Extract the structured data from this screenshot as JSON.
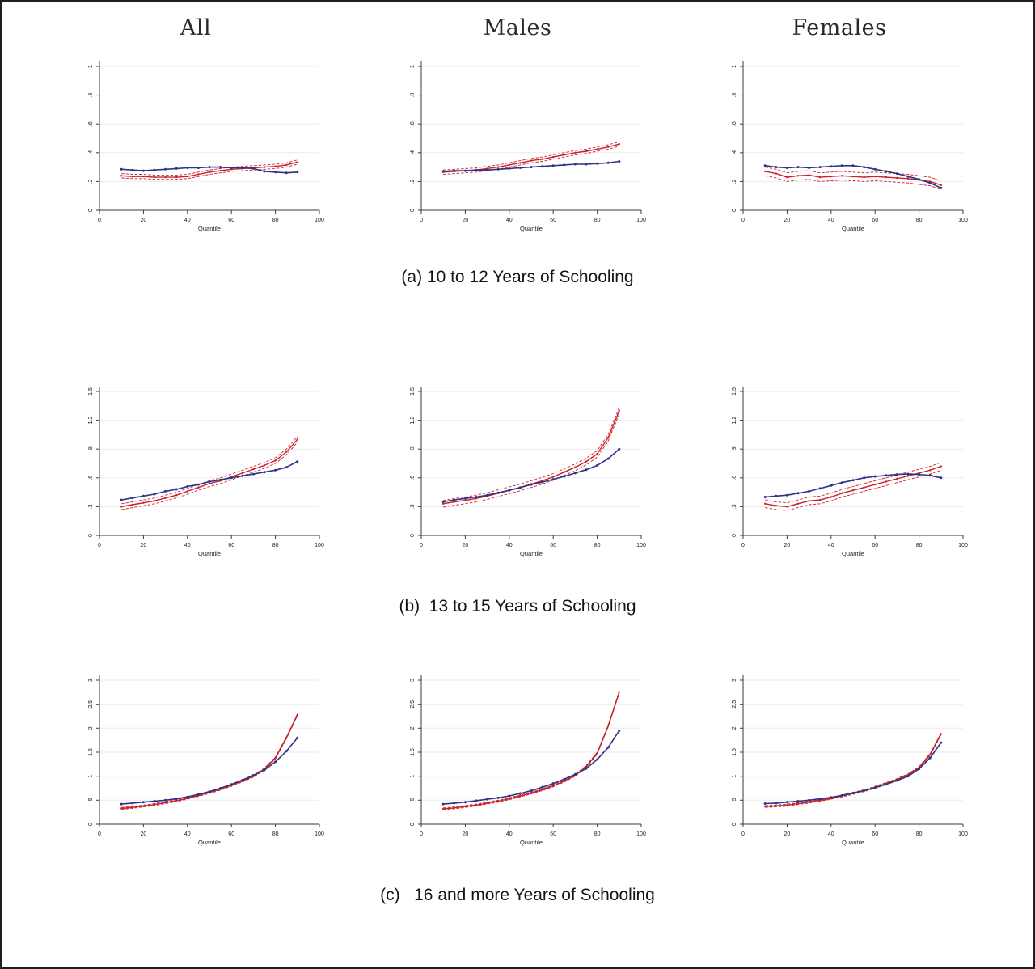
{
  "column_headers": [
    "All",
    "Males",
    "Females"
  ],
  "captions": [
    "(a) 10 to 12 Years of Schooling",
    "(b)  13 to 15 Years of Schooling",
    "(c)   16 and more Years of Schooling"
  ],
  "colors": {
    "blue_series": "#2b3489",
    "red_series": "#c8202a",
    "grid": "#ebebeb",
    "axis": "#3a3a3a"
  },
  "chart_data": [
    {
      "id": "a-all",
      "type": "line",
      "column": "All",
      "panel": "(a) 10 to 12 Years of Schooling",
      "xlabel": "Quantile",
      "xlim": [
        0,
        100
      ],
      "ylim": [
        0,
        1
      ],
      "xticks": [
        0,
        20,
        40,
        60,
        80,
        100
      ],
      "yticks": [
        {
          "v": 0,
          "label": "0"
        },
        {
          "v": 0.2,
          "label": ".2"
        },
        {
          "v": 0.4,
          "label": ".4"
        },
        {
          "v": 0.6,
          "label": ".6"
        },
        {
          "v": 0.8,
          "label": ".8"
        },
        {
          "v": 1,
          "label": "1"
        }
      ],
      "x": [
        10,
        15,
        20,
        25,
        30,
        35,
        40,
        45,
        50,
        55,
        60,
        65,
        70,
        75,
        80,
        85,
        90
      ],
      "series": {
        "blue": [
          0.285,
          0.28,
          0.275,
          0.28,
          0.285,
          0.29,
          0.295,
          0.295,
          0.3,
          0.3,
          0.295,
          0.295,
          0.29,
          0.27,
          0.265,
          0.26,
          0.265
        ],
        "red": [
          0.24,
          0.235,
          0.235,
          0.23,
          0.23,
          0.23,
          0.235,
          0.25,
          0.265,
          0.275,
          0.285,
          0.29,
          0.295,
          0.3,
          0.305,
          0.315,
          0.335
        ]
      },
      "ci": 0.015
    },
    {
      "id": "a-males",
      "type": "line",
      "column": "Males",
      "panel": "(a) 10 to 12 Years of Schooling",
      "xlabel": "Quantile",
      "xlim": [
        0,
        100
      ],
      "ylim": [
        0,
        1
      ],
      "xticks": [
        0,
        20,
        40,
        60,
        80,
        100
      ],
      "yticks": [
        {
          "v": 0,
          "label": "0"
        },
        {
          "v": 0.2,
          "label": ".2"
        },
        {
          "v": 0.4,
          "label": ".4"
        },
        {
          "v": 0.6,
          "label": ".6"
        },
        {
          "v": 0.8,
          "label": ".8"
        },
        {
          "v": 1,
          "label": "1"
        }
      ],
      "x": [
        10,
        15,
        20,
        25,
        30,
        35,
        40,
        45,
        50,
        55,
        60,
        65,
        70,
        75,
        80,
        85,
        90
      ],
      "series": {
        "blue": [
          0.27,
          0.275,
          0.275,
          0.28,
          0.28,
          0.285,
          0.29,
          0.295,
          0.3,
          0.305,
          0.31,
          0.315,
          0.32,
          0.32,
          0.325,
          0.33,
          0.34
        ],
        "red": [
          0.265,
          0.27,
          0.275,
          0.28,
          0.29,
          0.3,
          0.315,
          0.33,
          0.345,
          0.355,
          0.37,
          0.385,
          0.4,
          0.41,
          0.425,
          0.44,
          0.46
        ]
      },
      "ci": 0.015
    },
    {
      "id": "a-females",
      "type": "line",
      "column": "Females",
      "panel": "(a) 10 to 12 Years of Schooling",
      "xlabel": "Quantile",
      "xlim": [
        0,
        100
      ],
      "ylim": [
        0,
        1
      ],
      "xticks": [
        0,
        20,
        40,
        60,
        80,
        100
      ],
      "yticks": [
        {
          "v": 0,
          "label": "0"
        },
        {
          "v": 0.2,
          "label": ".2"
        },
        {
          "v": 0.4,
          "label": ".4"
        },
        {
          "v": 0.6,
          "label": ".6"
        },
        {
          "v": 0.8,
          "label": ".8"
        },
        {
          "v": 1,
          "label": "1"
        }
      ],
      "x": [
        10,
        15,
        20,
        25,
        30,
        35,
        40,
        45,
        50,
        55,
        60,
        65,
        70,
        75,
        80,
        85,
        90
      ],
      "series": {
        "blue": [
          0.31,
          0.3,
          0.295,
          0.3,
          0.295,
          0.3,
          0.305,
          0.31,
          0.31,
          0.3,
          0.285,
          0.27,
          0.255,
          0.235,
          0.215,
          0.19,
          0.155
        ],
        "red": [
          0.27,
          0.255,
          0.23,
          0.24,
          0.245,
          0.23,
          0.235,
          0.24,
          0.235,
          0.23,
          0.235,
          0.23,
          0.225,
          0.22,
          0.21,
          0.2,
          0.175
        ]
      },
      "ci": 0.03
    },
    {
      "id": "b-all",
      "type": "line",
      "column": "All",
      "panel": "(b) 13 to 15 Years of Schooling",
      "xlabel": "Quantile",
      "xlim": [
        0,
        100
      ],
      "ylim": [
        0,
        1.5
      ],
      "xticks": [
        0,
        20,
        40,
        60,
        80,
        100
      ],
      "yticks": [
        {
          "v": 0,
          "label": "0"
        },
        {
          "v": 0.3,
          "label": ".3"
        },
        {
          "v": 0.6,
          "label": ".6"
        },
        {
          "v": 0.9,
          "label": ".9"
        },
        {
          "v": 1.2,
          "label": "1.2"
        },
        {
          "v": 1.5,
          "label": "1.5"
        }
      ],
      "x": [
        10,
        15,
        20,
        25,
        30,
        35,
        40,
        45,
        50,
        55,
        60,
        65,
        70,
        75,
        80,
        85,
        90
      ],
      "series": {
        "blue": [
          0.37,
          0.39,
          0.41,
          0.43,
          0.46,
          0.48,
          0.51,
          0.53,
          0.56,
          0.58,
          0.6,
          0.62,
          0.64,
          0.66,
          0.68,
          0.71,
          0.77
        ],
        "red": [
          0.3,
          0.32,
          0.34,
          0.36,
          0.39,
          0.42,
          0.46,
          0.5,
          0.54,
          0.57,
          0.61,
          0.65,
          0.69,
          0.73,
          0.78,
          0.87,
          1.0
        ]
      },
      "ci": 0.03
    },
    {
      "id": "b-males",
      "type": "line",
      "column": "Males",
      "panel": "(b) 13 to 15 Years of Schooling",
      "xlabel": "Quantile",
      "xlim": [
        0,
        100
      ],
      "ylim": [
        0,
        1.5
      ],
      "xticks": [
        0,
        20,
        40,
        60,
        80,
        100
      ],
      "yticks": [
        {
          "v": 0,
          "label": "0"
        },
        {
          "v": 0.3,
          "label": ".3"
        },
        {
          "v": 0.6,
          "label": ".6"
        },
        {
          "v": 0.9,
          "label": ".9"
        },
        {
          "v": 1.2,
          "label": "1.2"
        },
        {
          "v": 1.5,
          "label": "1.5"
        }
      ],
      "x": [
        10,
        15,
        20,
        25,
        30,
        35,
        40,
        45,
        50,
        55,
        60,
        65,
        70,
        75,
        80,
        85,
        90
      ],
      "series": {
        "blue": [
          0.35,
          0.37,
          0.385,
          0.4,
          0.42,
          0.445,
          0.47,
          0.5,
          0.53,
          0.555,
          0.585,
          0.615,
          0.65,
          0.685,
          0.73,
          0.8,
          0.9
        ],
        "red": [
          0.33,
          0.35,
          0.365,
          0.385,
          0.41,
          0.44,
          0.47,
          0.5,
          0.535,
          0.57,
          0.61,
          0.66,
          0.71,
          0.77,
          0.85,
          1.02,
          1.3
        ]
      },
      "ci": 0.035
    },
    {
      "id": "b-females",
      "type": "line",
      "column": "Females",
      "panel": "(b) 13 to 15 Years of Schooling",
      "xlabel": "Quantile",
      "xlim": [
        0,
        100
      ],
      "ylim": [
        0,
        1.5
      ],
      "xticks": [
        0,
        20,
        40,
        60,
        80,
        100
      ],
      "yticks": [
        {
          "v": 0,
          "label": "0"
        },
        {
          "v": 0.3,
          "label": ".3"
        },
        {
          "v": 0.6,
          "label": ".6"
        },
        {
          "v": 0.9,
          "label": ".9"
        },
        {
          "v": 1.2,
          "label": "1.2"
        },
        {
          "v": 1.5,
          "label": "1.5"
        }
      ],
      "x": [
        10,
        15,
        20,
        25,
        30,
        35,
        40,
        45,
        50,
        55,
        60,
        65,
        70,
        75,
        80,
        85,
        90
      ],
      "series": {
        "blue": [
          0.4,
          0.41,
          0.42,
          0.44,
          0.46,
          0.49,
          0.52,
          0.55,
          0.575,
          0.6,
          0.615,
          0.625,
          0.635,
          0.64,
          0.635,
          0.625,
          0.6
        ],
        "red": [
          0.33,
          0.31,
          0.3,
          0.33,
          0.36,
          0.37,
          0.4,
          0.44,
          0.47,
          0.5,
          0.53,
          0.56,
          0.59,
          0.62,
          0.65,
          0.68,
          0.72
        ]
      },
      "ci": 0.04
    },
    {
      "id": "c-all",
      "type": "line",
      "column": "All",
      "panel": "(c) 16 and more Years of Schooling",
      "xlabel": "Quantile",
      "xlim": [
        0,
        100
      ],
      "ylim": [
        0,
        3
      ],
      "xticks": [
        0,
        20,
        40,
        60,
        80,
        100
      ],
      "yticks": [
        {
          "v": 0,
          "label": "0"
        },
        {
          "v": 0.5,
          "label": ".5"
        },
        {
          "v": 1,
          "label": "1"
        },
        {
          "v": 1.5,
          "label": "1.5"
        },
        {
          "v": 2,
          "label": "2"
        },
        {
          "v": 2.5,
          "label": "2.5"
        },
        {
          "v": 3,
          "label": "3"
        }
      ],
      "x": [
        10,
        15,
        20,
        25,
        30,
        35,
        40,
        45,
        50,
        55,
        60,
        65,
        70,
        75,
        80,
        85,
        90
      ],
      "series": {
        "blue": [
          0.42,
          0.44,
          0.46,
          0.48,
          0.5,
          0.53,
          0.57,
          0.62,
          0.68,
          0.75,
          0.83,
          0.92,
          1.02,
          1.13,
          1.3,
          1.52,
          1.8
        ],
        "red": [
          0.33,
          0.35,
          0.38,
          0.41,
          0.45,
          0.49,
          0.54,
          0.6,
          0.66,
          0.73,
          0.81,
          0.9,
          1.0,
          1.15,
          1.38,
          1.8,
          2.28
        ]
      },
      "ci": 0.02
    },
    {
      "id": "c-males",
      "type": "line",
      "column": "Males",
      "panel": "(c) 16 and more Years of Schooling",
      "xlabel": "Quantile",
      "xlim": [
        0,
        100
      ],
      "ylim": [
        0,
        3
      ],
      "xticks": [
        0,
        20,
        40,
        60,
        80,
        100
      ],
      "yticks": [
        {
          "v": 0,
          "label": "0"
        },
        {
          "v": 0.5,
          "label": ".5"
        },
        {
          "v": 1,
          "label": "1"
        },
        {
          "v": 1.5,
          "label": "1.5"
        },
        {
          "v": 2,
          "label": "2"
        },
        {
          "v": 2.5,
          "label": "2.5"
        },
        {
          "v": 3,
          "label": "3"
        }
      ],
      "x": [
        10,
        15,
        20,
        25,
        30,
        35,
        40,
        45,
        50,
        55,
        60,
        65,
        70,
        75,
        80,
        85,
        90
      ],
      "series": {
        "blue": [
          0.42,
          0.44,
          0.46,
          0.49,
          0.52,
          0.55,
          0.59,
          0.64,
          0.7,
          0.77,
          0.85,
          0.94,
          1.04,
          1.16,
          1.35,
          1.6,
          1.95
        ],
        "red": [
          0.32,
          0.34,
          0.37,
          0.4,
          0.44,
          0.48,
          0.53,
          0.59,
          0.65,
          0.72,
          0.8,
          0.9,
          1.02,
          1.2,
          1.48,
          2.05,
          2.75
        ]
      },
      "ci": 0.02
    },
    {
      "id": "c-females",
      "type": "line",
      "column": "Females",
      "panel": "(c) 16 and more Years of Schooling",
      "xlabel": "Quantile",
      "xlim": [
        0,
        100
      ],
      "ylim": [
        0,
        3
      ],
      "xticks": [
        0,
        20,
        40,
        60,
        80,
        100
      ],
      "yticks": [
        {
          "v": 0,
          "label": "0"
        },
        {
          "v": 0.5,
          "label": ".5"
        },
        {
          "v": 1,
          "label": "1"
        },
        {
          "v": 1.5,
          "label": "1.5"
        },
        {
          "v": 2,
          "label": "2"
        },
        {
          "v": 2.5,
          "label": "2.5"
        },
        {
          "v": 3,
          "label": "3"
        }
      ],
      "x": [
        10,
        15,
        20,
        25,
        30,
        35,
        40,
        45,
        50,
        55,
        60,
        65,
        70,
        75,
        80,
        85,
        90
      ],
      "series": {
        "blue": [
          0.43,
          0.44,
          0.46,
          0.48,
          0.5,
          0.53,
          0.56,
          0.6,
          0.65,
          0.7,
          0.76,
          0.83,
          0.91,
          1.0,
          1.15,
          1.38,
          1.7
        ],
        "red": [
          0.37,
          0.38,
          0.4,
          0.43,
          0.46,
          0.5,
          0.54,
          0.59,
          0.64,
          0.7,
          0.77,
          0.85,
          0.93,
          1.03,
          1.18,
          1.45,
          1.88
        ]
      },
      "ci": 0.02
    }
  ]
}
